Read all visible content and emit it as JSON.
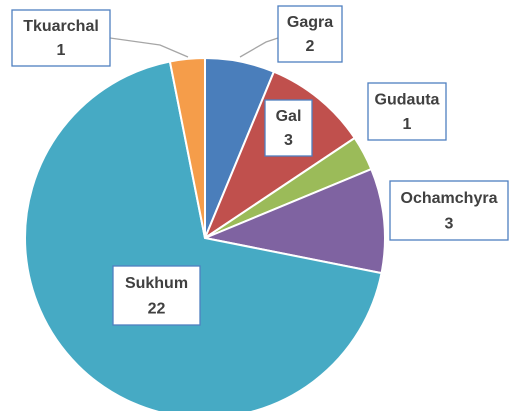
{
  "chart_data": {
    "type": "pie",
    "categories": [
      "Gagra",
      "Gal",
      "Gudauta",
      "Ochamchyra",
      "Sukhum",
      "Tkuarchal"
    ],
    "values": [
      2,
      3,
      1,
      3,
      22,
      1
    ],
    "colors": [
      "#4a7ebb",
      "#c0504d",
      "#9bbb59",
      "#7f63a1",
      "#46aac4",
      "#f59d4a"
    ]
  }
}
